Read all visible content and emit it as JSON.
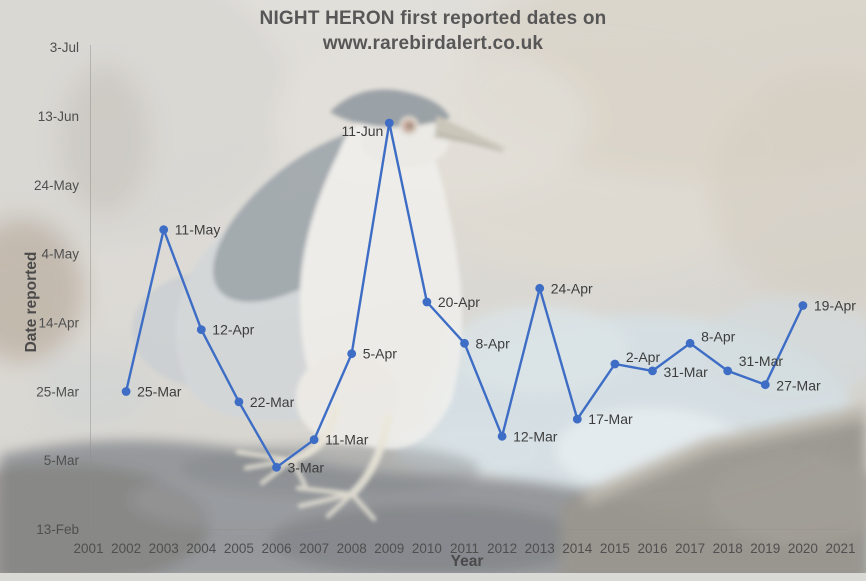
{
  "title": {
    "line1": "NIGHT HERON first reported dates on",
    "line2": "www.rarebirdalert.co.uk"
  },
  "background": {
    "subject": "faded photo of a black-crowned night heron standing on a dark log beside pale blue water"
  },
  "colors": {
    "line": "#3E6DC5",
    "marker": "#3E6DC5",
    "title_text": "#575757",
    "axis_title_text": "#4a4a4a",
    "tick_text": "#4f4f4f",
    "point_label_text": "#3d3d3d",
    "axis_line": "#8c8c87"
  },
  "chart_data": {
    "type": "line",
    "title": "NIGHT HERON first reported dates on www.rarebirdalert.co.uk",
    "xlabel": "Year",
    "ylabel": "Date reported",
    "grid": false,
    "legend": "none",
    "x_ticks": [
      2001,
      2002,
      2003,
      2004,
      2005,
      2006,
      2007,
      2008,
      2009,
      2010,
      2011,
      2012,
      2013,
      2014,
      2015,
      2016,
      2017,
      2018,
      2019,
      2020,
      2021
    ],
    "xlim": [
      2001,
      2021
    ],
    "y_ticks": [
      {
        "label": "13-Feb",
        "day": 44
      },
      {
        "label": "5-Mar",
        "day": 64
      },
      {
        "label": "25-Mar",
        "day": 84
      },
      {
        "label": "14-Apr",
        "day": 104
      },
      {
        "label": "4-May",
        "day": 124
      },
      {
        "label": "24-May",
        "day": 144
      },
      {
        "label": "13-Jun",
        "day": 164
      },
      {
        "label": "3-Jul",
        "day": 184
      }
    ],
    "ylim_days": [
      44,
      184
    ],
    "series": [
      {
        "name": "first reported date",
        "points": [
          {
            "year": 2002,
            "label": "25-Mar",
            "day": 84
          },
          {
            "year": 2003,
            "label": "11-May",
            "day": 131
          },
          {
            "year": 2004,
            "label": "12-Apr",
            "day": 102
          },
          {
            "year": 2005,
            "label": "22-Mar",
            "day": 81
          },
          {
            "year": 2006,
            "label": "3-Mar",
            "day": 62
          },
          {
            "year": 2007,
            "label": "11-Mar",
            "day": 70
          },
          {
            "year": 2008,
            "label": "5-Apr",
            "day": 95
          },
          {
            "year": 2009,
            "label": "11-Jun",
            "day": 162,
            "label_side": "left",
            "label_dy": 13
          },
          {
            "year": 2010,
            "label": "20-Apr",
            "day": 110
          },
          {
            "year": 2011,
            "label": "8-Apr",
            "day": 98
          },
          {
            "year": 2012,
            "label": "12-Mar",
            "day": 71
          },
          {
            "year": 2013,
            "label": "24-Apr",
            "day": 114
          },
          {
            "year": 2014,
            "label": "17-Mar",
            "day": 76
          },
          {
            "year": 2015,
            "label": "2-Apr",
            "day": 92,
            "label_dy": -2
          },
          {
            "year": 2016,
            "label": "31-Mar",
            "day": 90,
            "label_dy": 6
          },
          {
            "year": 2017,
            "label": "8-Apr",
            "day": 98,
            "label_dy": -2
          },
          {
            "year": 2018,
            "label": "31-Mar",
            "day": 90,
            "label_dy": -5
          },
          {
            "year": 2019,
            "label": "27-Mar",
            "day": 86,
            "label_dy": 6
          },
          {
            "year": 2020,
            "label": "19-Apr",
            "day": 109
          }
        ]
      }
    ]
  }
}
